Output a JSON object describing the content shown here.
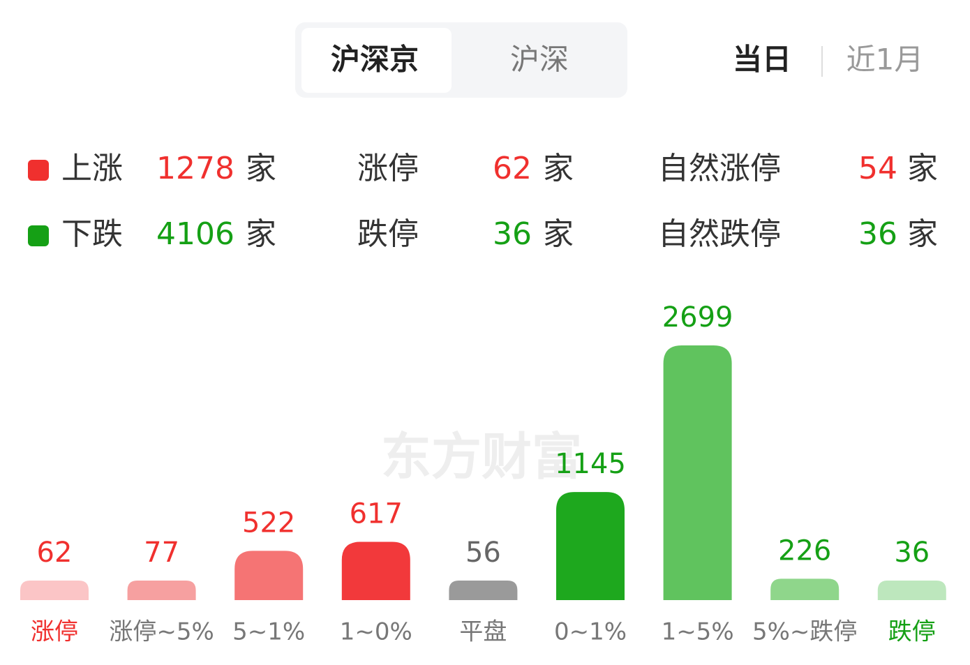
{
  "tabs": {
    "market": [
      "沪深京",
      "沪深"
    ],
    "active_market": 0,
    "period": [
      "当日",
      "近1月"
    ],
    "active_period": 0
  },
  "summary": {
    "unit": "家",
    "rows": [
      {
        "name": "上涨",
        "color": "#f0302e",
        "count": 1278,
        "limit_label": "涨停",
        "limit_count": 62,
        "natural_label": "自然涨停",
        "natural_count": 54
      },
      {
        "name": "下跌",
        "color": "#15a015",
        "count": 4106,
        "limit_label": "跌停",
        "limit_count": 36,
        "natural_label": "自然跌停",
        "natural_count": 36
      }
    ]
  },
  "watermark": "东方财富",
  "chart_data": {
    "type": "bar",
    "categories": [
      "涨停",
      "涨停~5%",
      "5~1%",
      "1~0%",
      "平盘",
      "0~1%",
      "1~5%",
      "5%~跌停",
      "跌停"
    ],
    "values": [
      62,
      77,
      522,
      617,
      56,
      1145,
      2699,
      226,
      36
    ],
    "colors": [
      "#fbc5c6",
      "#f6a0a0",
      "#f57474",
      "#f2393b",
      "#9a9a9a",
      "#1ea81e",
      "#60c35e",
      "#8fd68b",
      "#bde7bd"
    ],
    "value_label_colors": [
      "#f0302e",
      "#f0302e",
      "#f0302e",
      "#f0302e",
      "#666666",
      "#15a015",
      "#15a015",
      "#15a015",
      "#15a015"
    ],
    "category_label_colors": [
      "#f0302e",
      "#777777",
      "#777777",
      "#777777",
      "#777777",
      "#777777",
      "#777777",
      "#777777",
      "#15a015"
    ]
  }
}
